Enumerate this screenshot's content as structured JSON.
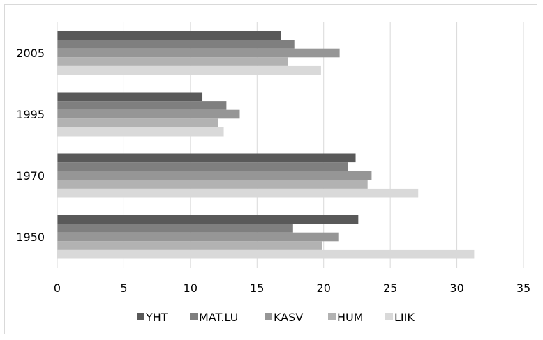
{
  "chart_data": {
    "type": "bar",
    "orientation": "horizontal",
    "categories": [
      "1950",
      "1970",
      "1995",
      "2005"
    ],
    "series": [
      {
        "name": "YHT",
        "values": [
          22.6,
          22.4,
          10.9,
          16.8
        ],
        "color": "#595959"
      },
      {
        "name": "MAT.LU",
        "values": [
          17.7,
          21.8,
          12.7,
          17.8
        ],
        "color": "#7f7f7f"
      },
      {
        "name": "KASV",
        "values": [
          21.1,
          23.6,
          13.7,
          21.2
        ],
        "color": "#969696"
      },
      {
        "name": "HUM",
        "values": [
          19.9,
          23.3,
          12.1,
          17.3
        ],
        "color": "#b2b2b2"
      },
      {
        "name": "LIIK",
        "values": [
          31.3,
          27.1,
          12.5,
          19.8
        ],
        "color": "#d9d9d9"
      }
    ],
    "xlim": [
      0,
      35
    ],
    "xticks": [
      0,
      5,
      10,
      15,
      20,
      25,
      30,
      35
    ],
    "grid": "vertical",
    "legend": "bottom",
    "title": "",
    "xlabel": "",
    "ylabel": ""
  }
}
